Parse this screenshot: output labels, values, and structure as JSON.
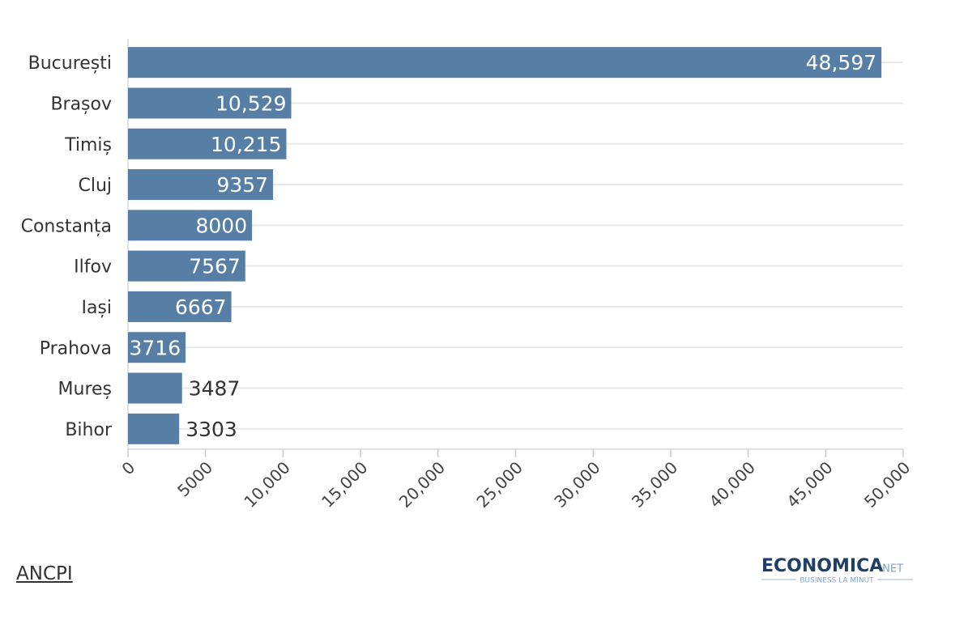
{
  "chart_data": {
    "type": "hbar",
    "categories": [
      "București",
      "Brașov",
      "Timiș",
      "Cluj",
      "Constanța",
      "Ilfov",
      "Iași",
      "Prahova",
      "Mureș",
      "Bihor"
    ],
    "values": [
      48597,
      10529,
      10215,
      9357,
      8000,
      7567,
      6667,
      3716,
      3487,
      3303
    ],
    "value_labels": [
      "48,597",
      "10,529",
      "10,215",
      "9357",
      "8000",
      "7567",
      "6667",
      "3716",
      "3487",
      "3303"
    ],
    "color": "#577fa6",
    "xlim": [
      0,
      50000
    ],
    "xticks": [
      0,
      5000,
      {
        "value": 10000,
        "label": "10,000"
      },
      {
        "value": 15000,
        "label": "15,000"
      },
      {
        "value": 20000,
        "label": "20,000"
      },
      {
        "value": 25000,
        "label": "25,000"
      },
      {
        "value": 30000,
        "label": "30,000"
      },
      {
        "value": 35000,
        "label": "35,000"
      },
      {
        "value": 40000,
        "label": "40,000"
      },
      {
        "value": 45000,
        "label": "45,000"
      },
      {
        "value": 50000,
        "label": "50,000"
      }
    ],
    "grid": true
  },
  "source": "ANCPI",
  "logo": {
    "name": "ECONOMICA",
    "suffix": ".NET",
    "tagline": "BUSINESS LA MINUT"
  }
}
